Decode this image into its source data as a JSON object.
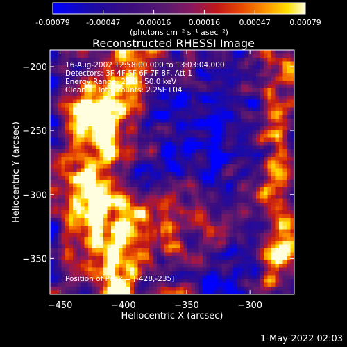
{
  "chart_data": {
    "type": "heatmap",
    "title": "Reconstructed RHESSI Image",
    "xlabel": "Heliocentric X (arcsec)",
    "ylabel": "Heliocentric Y (arcsec)",
    "xlim": [
      -458,
      -265
    ],
    "ylim": [
      -378,
      -187
    ],
    "x_ticks": [
      -450,
      -400,
      -350,
      -300
    ],
    "x_tick_labels": [
      "−450",
      "−400",
      "−350",
      "−300"
    ],
    "y_ticks": [
      -350,
      -300,
      -250,
      -200
    ],
    "y_tick_labels": [
      "−350",
      "−300",
      "−250",
      "−200"
    ],
    "annotations": [
      "16-Aug-2002 12:58:00.000 to 13:03:04.000",
      "Detectors: 3F 4F 5F 6F 7F 8F, Att 1",
      "Energy Range: 25.0 - 50.0 keV",
      "Clean     Total counts: 2.25E+04"
    ],
    "peak_label": "Position of Peak = [-428,-235]",
    "colorbar": {
      "range": [
        -0.00079,
        0.00079
      ],
      "tick_labels": [
        "-0.00079",
        "-0.00047",
        "-0.00016",
        "0.00016",
        "0.00047",
        "0.00079"
      ],
      "units": "(photons cm⁻² s⁻¹ asec⁻²)",
      "colors": [
        "#0000ff",
        "#3c0a8c",
        "#5a1c8a",
        "#8a1a6a",
        "#c01818",
        "#e84a00",
        "#ff9a00",
        "#ffe000",
        "#ffffe0"
      ]
    },
    "peak_position": [
      -428,
      -235
    ]
  },
  "footer": {
    "date": "1-May-2022 02:03"
  }
}
